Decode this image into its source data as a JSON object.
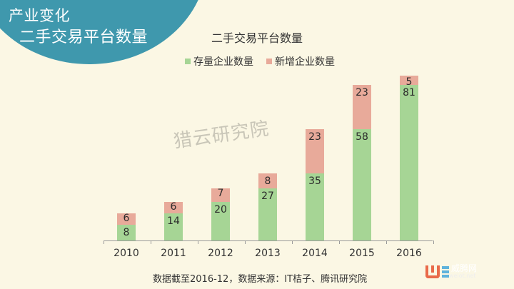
{
  "header": {
    "line1": "产业变化",
    "line2": "二手交易平台数量"
  },
  "watermark": "猎云研究院",
  "source_note": "数据截至2016-12，数据来源：IT桔子、腾讯研究院",
  "logo": {
    "name": "威腾网",
    "url_text": "weiot.net"
  },
  "colors": {
    "header_bg": "#3f98ad",
    "existing": "#a6d595",
    "new": "#e8aa9a",
    "background": "#fbf7e4"
  },
  "chart_data": {
    "type": "bar",
    "stacked": true,
    "title": "二手交易平台数量",
    "categories": [
      "2010",
      "2011",
      "2012",
      "2013",
      "2014",
      "2015",
      "2016"
    ],
    "series": [
      {
        "name": "存量企业数量",
        "color": "#a6d595",
        "values": [
          8,
          14,
          20,
          27,
          35,
          58,
          81
        ]
      },
      {
        "name": "新增企业数量",
        "color": "#e8aa9a",
        "values": [
          6,
          6,
          7,
          8,
          23,
          23,
          5
        ]
      }
    ],
    "xlabel": "",
    "ylabel": "",
    "ylim": [
      0,
      90
    ],
    "grid": false,
    "legend_position": "top"
  }
}
